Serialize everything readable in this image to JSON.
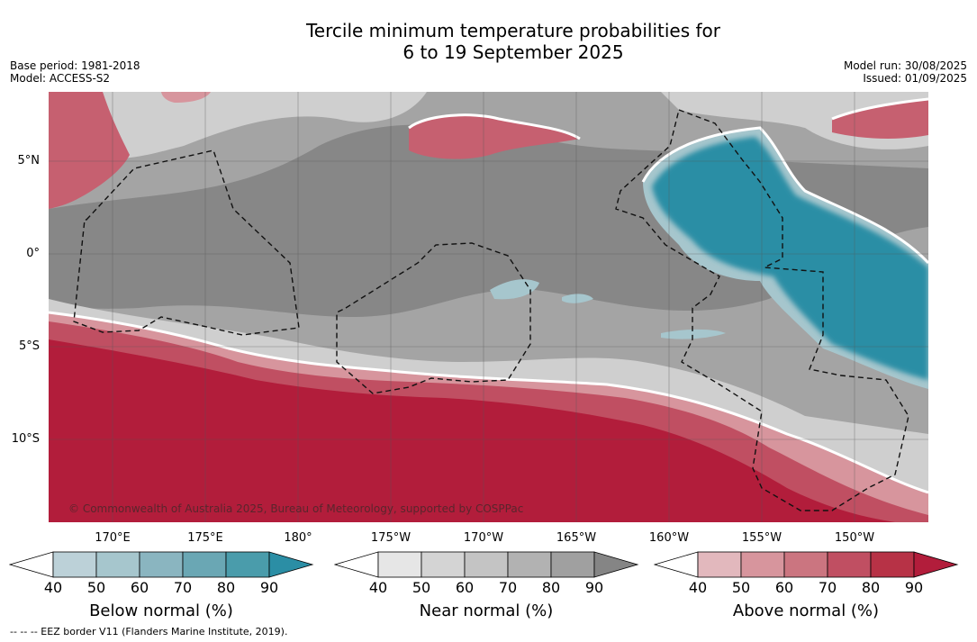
{
  "title_line1": "Tercile minimum temperature probabilities for",
  "title_line2": "6 to 19 September 2025",
  "meta_left": [
    "Base period: 1981-2018",
    "Model: ACCESS-S2"
  ],
  "meta_right": [
    "Model run: 30/08/2025",
    "Issued: 01/09/2025"
  ],
  "lat_ticks": [
    "5°N",
    "0°",
    "5°S",
    "10°S"
  ],
  "lon_ticks": [
    "170°E",
    "175°E",
    "180°",
    "175°W",
    "170°W",
    "165°W",
    "160°W",
    "155°W",
    "150°W"
  ],
  "credit": "© Commonwealth of Australia 2025, Bureau of Meteorology, supported by COSPPac",
  "footnote": "--  --  -- EEZ border V11 (Flanders Marine Institute, 2019).",
  "colorbars": [
    {
      "label": "Below normal (%)",
      "ticks": [
        "40",
        "50",
        "60",
        "70",
        "80",
        "90"
      ],
      "colors": [
        "#ffffff",
        "#bcd1d8",
        "#a6c6cd",
        "#8ab5c0",
        "#6aa7b4",
        "#4a9cab",
        "#2b8ea5"
      ]
    },
    {
      "label": "Near normal (%)",
      "ticks": [
        "40",
        "50",
        "60",
        "70",
        "80",
        "90"
      ],
      "colors": [
        "#ffffff",
        "#e6e6e6",
        "#d4d4d4",
        "#c4c4c4",
        "#b2b2b2",
        "#a0a0a0",
        "#858585"
      ]
    },
    {
      "label": "Above normal (%)",
      "ticks": [
        "40",
        "50",
        "60",
        "70",
        "80",
        "90"
      ],
      "colors": [
        "#ffffff",
        "#e2b8bd",
        "#d7959d",
        "#cb7580",
        "#c04f62",
        "#b73246",
        "#b21d3b"
      ]
    }
  ],
  "colors": {
    "gray_base": "#9e9e9e",
    "gray_dark": "#858585",
    "gray_mid": "#b4b4b4",
    "gray_light": "#d6d6d6",
    "red_strong": "#b21d3b",
    "red_mid": "#c04f62",
    "red_light": "#d7959d",
    "teal_strong": "#2b8ea5",
    "teal_mid": "#6aa7b4",
    "teal_light": "#a6c6cd"
  }
}
